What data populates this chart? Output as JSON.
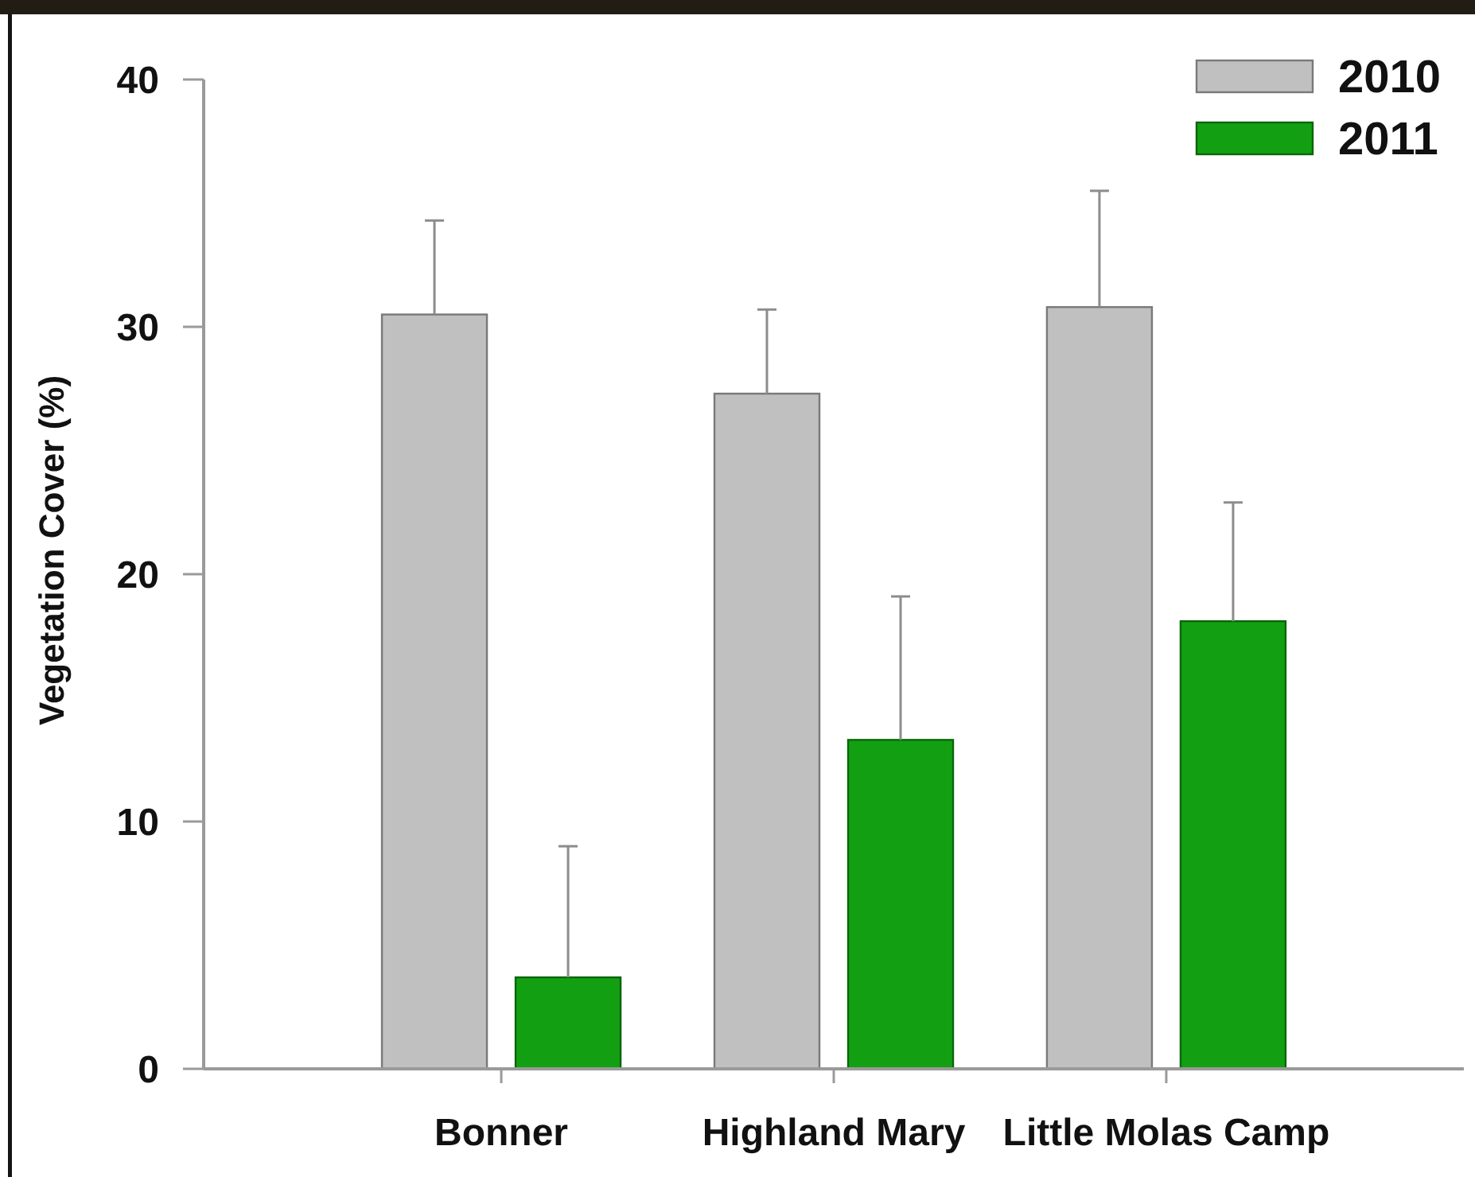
{
  "chart_data": {
    "type": "bar",
    "categories": [
      "Bonner",
      "Highland Mary",
      "Little Molas Camp"
    ],
    "ylabel": "Vegetation Cover (%)",
    "ylim": [
      0,
      40
    ],
    "yticks": [
      0,
      10,
      20,
      30,
      40
    ],
    "legend": "top right",
    "series": [
      {
        "name": "2010",
        "color": "#c0c0c0",
        "values": [
          30.5,
          27.3,
          30.8
        ],
        "errors": [
          [
            30.5,
            34.3
          ],
          [
            27.3,
            30.7
          ],
          [
            30.8,
            35.5
          ]
        ]
      },
      {
        "name": "2011",
        "color": "#12a012",
        "values": [
          3.7,
          13.3,
          18.1
        ],
        "errors": [
          [
            3.7,
            9.0
          ],
          [
            13.3,
            19.1
          ],
          [
            18.1,
            22.9
          ]
        ]
      }
    ]
  }
}
